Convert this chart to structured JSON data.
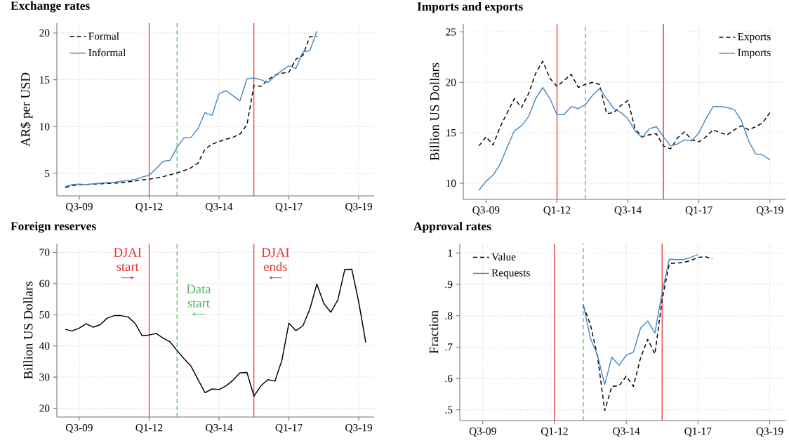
{
  "chart_data": [
    {
      "type": "line",
      "title": "Exchange rates",
      "ylabel": "AR$ per USD",
      "grid": true,
      "legend": "top left",
      "categories": [
        null,
        null,
        "Q3-09",
        null,
        null,
        null,
        null,
        null,
        null,
        null,
        null,
        null,
        "Q1-12",
        null,
        null,
        null,
        null,
        null,
        null,
        null,
        null,
        null,
        "Q3-14",
        null,
        null,
        null,
        null,
        null,
        null,
        null,
        null,
        null,
        "Q1-17",
        null,
        null,
        null,
        null,
        null,
        null,
        null,
        null,
        null,
        "Q3-19",
        null
      ],
      "ylim": [
        2.6,
        21.05
      ],
      "yticks": [
        5,
        10,
        15,
        20
      ],
      "series": [
        {
          "name": "Formal",
          "color": "#000000",
          "line_style": "dashed",
          "values": [
            3.5,
            3.7,
            3.8,
            3.8,
            3.85,
            3.9,
            3.93,
            3.97,
            4.0,
            4.1,
            4.2,
            4.3,
            4.38,
            4.5,
            4.65,
            4.85,
            5.05,
            5.3,
            5.6,
            6.1,
            7.6,
            8.1,
            8.4,
            8.65,
            8.85,
            9.2,
            10.2,
            14.4,
            14.3,
            15.0,
            15.5,
            15.7,
            15.8,
            17.2,
            17.6,
            19.6,
            19.6,
            null,
            null,
            null,
            null,
            null,
            null,
            null
          ]
        },
        {
          "name": "Informal",
          "color": "#4a8bc4",
          "line_style": "solid",
          "values": [
            3.6,
            3.8,
            3.85,
            3.8,
            3.9,
            3.95,
            4.0,
            4.05,
            4.15,
            4.25,
            4.35,
            4.6,
            4.8,
            5.5,
            6.3,
            6.4,
            7.8,
            8.8,
            8.85,
            9.8,
            11.5,
            11.2,
            13.5,
            13.85,
            13.3,
            12.75,
            15.1,
            15.2,
            15.0,
            14.7,
            15.4,
            16.0,
            16.5,
            16.2,
            18.0,
            18.1,
            20.2,
            null,
            null,
            null,
            null,
            null,
            null,
            null
          ]
        }
      ]
    },
    {
      "type": "line",
      "title": "Imports and exports",
      "ylabel": "Billion US Dollars",
      "grid": true,
      "legend": "top right",
      "categories": [
        null,
        null,
        "Q3-09",
        null,
        null,
        null,
        null,
        null,
        null,
        null,
        null,
        null,
        "Q1-12",
        null,
        null,
        null,
        null,
        null,
        null,
        null,
        null,
        null,
        "Q3-14",
        null,
        null,
        null,
        null,
        null,
        null,
        null,
        null,
        null,
        "Q1-17",
        null,
        null,
        null,
        null,
        null,
        null,
        null,
        null,
        null,
        "Q3-19",
        null
      ],
      "ylim": [
        8.4,
        25.8
      ],
      "yticks": [
        10,
        15,
        20,
        25
      ],
      "series": [
        {
          "name": "Exports",
          "color": "#000000",
          "line_style": "dashed",
          "values": [
            null,
            13.7,
            14.6,
            13.8,
            15.6,
            17.0,
            18.4,
            17.5,
            18.9,
            20.9,
            22.1,
            20.4,
            19.6,
            20.2,
            20.8,
            19.5,
            19.8,
            20.0,
            19.8,
            16.9,
            17.0,
            17.7,
            18.2,
            15.4,
            14.6,
            14.8,
            14.9,
            13.7,
            13.4,
            14.5,
            15.1,
            14.3,
            14.1,
            14.6,
            15.3,
            15.0,
            14.8,
            15.3,
            15.7,
            15.3,
            15.6,
            16.0,
            17.0,
            null
          ]
        },
        {
          "name": "Imports",
          "color": "#4a8bc4",
          "line_style": "solid",
          "values": [
            null,
            9.3,
            10.2,
            10.8,
            11.9,
            13.6,
            15.2,
            15.7,
            16.6,
            18.4,
            19.5,
            18.4,
            16.8,
            16.8,
            17.6,
            17.4,
            17.8,
            18.7,
            19.4,
            18.4,
            17.4,
            17.0,
            16.4,
            15.2,
            14.5,
            15.4,
            15.6,
            14.6,
            13.7,
            13.9,
            14.3,
            14.2,
            15.0,
            16.4,
            17.6,
            17.6,
            17.5,
            17.3,
            16.2,
            14.2,
            12.9,
            12.8,
            12.3,
            null
          ]
        }
      ]
    },
    {
      "type": "line",
      "title": "Foreign reserves",
      "ylabel": "Billion US Dollars",
      "grid": true,
      "categories": [
        null,
        null,
        "Q3-09",
        null,
        null,
        null,
        null,
        null,
        null,
        null,
        null,
        null,
        "Q1-12",
        null,
        null,
        null,
        null,
        null,
        null,
        null,
        null,
        null,
        "Q3-14",
        null,
        null,
        null,
        null,
        null,
        null,
        null,
        null,
        null,
        "Q1-17",
        null,
        null,
        null,
        null,
        null,
        null,
        null,
        null,
        null,
        "Q3-19",
        null
      ],
      "ylim": [
        17.2,
        72.8
      ],
      "yticks": [
        20,
        30,
        40,
        50,
        60,
        70
      ],
      "annotations": [
        "DJAI start",
        "Data start",
        "DJAI ends"
      ],
      "series": [
        {
          "color": "#000000",
          "line_style": "solid",
          "values": [
            45.3,
            44.8,
            45.7,
            47.1,
            46.0,
            46.8,
            48.9,
            49.7,
            49.7,
            49.3,
            47.2,
            43.3,
            43.5,
            44.0,
            42.5,
            41.3,
            38.5,
            35.9,
            33.5,
            29.2,
            25.0,
            26.2,
            26.0,
            27.2,
            29.0,
            31.4,
            31.5,
            23.9,
            27.2,
            29.2,
            28.7,
            35.4,
            47.3,
            44.9,
            46.4,
            51.8,
            59.8,
            53.6,
            50.8,
            54.7,
            64.5,
            64.6,
            54.0,
            41.1
          ]
        }
      ]
    },
    {
      "type": "line",
      "title": "Approval rates",
      "ylabel": "Fraction",
      "grid": true,
      "legend": "top left",
      "categories": [
        null,
        null,
        "Q3-09",
        null,
        null,
        null,
        null,
        null,
        null,
        null,
        null,
        null,
        "Q1-12",
        null,
        null,
        null,
        null,
        null,
        null,
        null,
        null,
        null,
        "Q3-14",
        null,
        null,
        null,
        null,
        null,
        null,
        null,
        null,
        null,
        "Q1-17",
        null,
        null,
        null,
        null,
        null,
        null,
        null,
        null,
        null,
        "Q3-19",
        null
      ],
      "ylim": [
        0.466,
        1.03
      ],
      "yticks": [
        {
          "value": 0.5,
          "label": ".5"
        },
        {
          "value": 0.6,
          "label": ".6"
        },
        {
          "value": 0.7,
          "label": ".7"
        },
        {
          "value": 0.8,
          "label": ".8"
        },
        {
          "value": 0.9,
          "label": ".9"
        },
        1
      ],
      "series": [
        {
          "name": "Value",
          "color": "#000000",
          "line_style": "dashed",
          "values": [
            null,
            null,
            null,
            null,
            null,
            null,
            null,
            null,
            null,
            null,
            null,
            null,
            null,
            null,
            null,
            null,
            0.832,
            0.773,
            0.67,
            0.498,
            0.575,
            0.577,
            0.607,
            0.575,
            0.666,
            0.725,
            0.678,
            0.85,
            0.966,
            0.968,
            0.97,
            0.976,
            0.986,
            0.988,
            0.982,
            null,
            null,
            null,
            null,
            null,
            null,
            null,
            null,
            null
          ]
        },
        {
          "name": "Requests",
          "color": "#4a8bc4",
          "line_style": "solid",
          "values": [
            null,
            null,
            null,
            null,
            null,
            null,
            null,
            null,
            null,
            null,
            null,
            null,
            null,
            null,
            null,
            null,
            0.837,
            0.729,
            0.674,
            0.581,
            0.668,
            0.642,
            0.674,
            0.684,
            0.761,
            0.783,
            0.745,
            0.875,
            0.98,
            0.979,
            0.979,
            0.986,
            0.995,
            null,
            null,
            null,
            null,
            null,
            null,
            null,
            null,
            null,
            null,
            null
          ]
        }
      ]
    }
  ]
}
